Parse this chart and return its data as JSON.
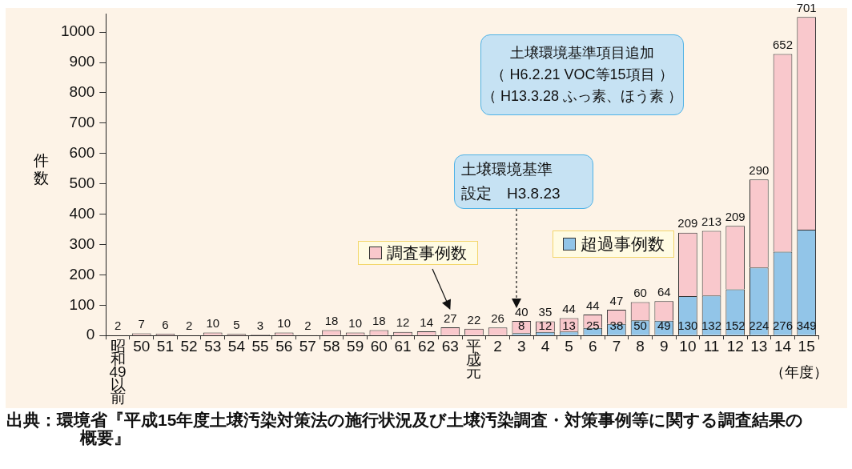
{
  "chart_data": {
    "type": "bar",
    "stacked": true,
    "ylabel": "件数",
    "xlabel": "（年度）",
    "categories": [
      "昭和49以前",
      "50",
      "51",
      "52",
      "53",
      "54",
      "55",
      "56",
      "57",
      "58",
      "59",
      "60",
      "61",
      "62",
      "63",
      "平成元",
      "2",
      "3",
      "4",
      "5",
      "6",
      "7",
      "8",
      "9",
      "10",
      "11",
      "12",
      "13",
      "14",
      "15"
    ],
    "series": [
      {
        "name": "超過事例数",
        "color": "#92c5e8",
        "values": [
          null,
          null,
          null,
          null,
          null,
          null,
          null,
          null,
          null,
          null,
          null,
          null,
          null,
          null,
          null,
          null,
          null,
          8,
          12,
          13,
          25,
          38,
          50,
          49,
          130,
          132,
          152,
          224,
          276,
          349
        ]
      },
      {
        "name": "調査事例数",
        "color": "#f9c8cc",
        "values": [
          2,
          7,
          6,
          2,
          10,
          5,
          3,
          10,
          2,
          18,
          10,
          18,
          12,
          14,
          27,
          22,
          26,
          40,
          35,
          44,
          44,
          47,
          60,
          64,
          209,
          213,
          209,
          290,
          652,
          701
        ]
      }
    ],
    "ylim": [
      0,
      1060
    ],
    "yticks": [
      0,
      100,
      200,
      300,
      400,
      500,
      600,
      700,
      800,
      900,
      1000
    ],
    "grid": false,
    "legend": "center",
    "data_labels": true,
    "annotations": [
      "土壌環境基準",
      "設定　H3.8.23",
      "土壌環境基準項目追加",
      "（ H6.2.21 VOC等15項目 ）",
      "（ H13.3.28 ふっ素、ほう素 ）",
      "出典：環境省『平成15年度土壌汚染対策法の施行状況及び土壌汚染調査・対策事例等に関する調査結果の概要』"
    ]
  }
}
